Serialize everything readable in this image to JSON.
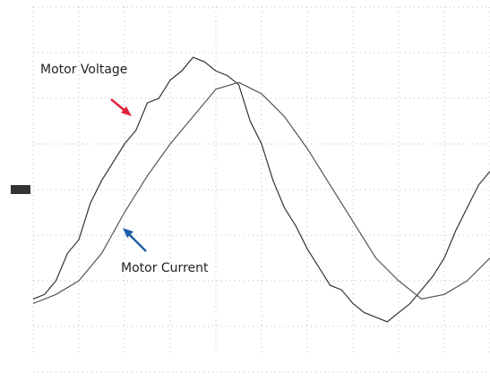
{
  "chart_data": {
    "type": "line",
    "xlim": [
      0,
      10
    ],
    "ylim": [
      -4,
      4
    ],
    "xticks": [
      0,
      1,
      2,
      3,
      4,
      5,
      6,
      7,
      8,
      9,
      10
    ],
    "yticks": [
      -4,
      -3,
      -2,
      -1,
      0,
      1,
      2,
      3,
      4
    ],
    "grid": true,
    "series": [
      {
        "name": "Motor Voltage",
        "color": "#333333",
        "x": [
          0,
          0.25,
          0.5,
          0.75,
          1,
          1.25,
          1.5,
          1.75,
          2,
          2.25,
          2.5,
          2.75,
          3,
          3.25,
          3.5,
          3.75,
          4,
          4.25,
          4.5,
          4.75,
          5,
          5.25,
          5.5,
          5.75,
          6,
          6.25,
          6.5,
          6.75,
          7,
          7.25,
          7.5,
          7.75,
          8,
          8.25,
          8.5,
          8.75,
          9,
          9.25,
          9.5,
          9.75,
          10
        ],
        "values": [
          -2.4,
          -2.3,
          -2.0,
          -1.4,
          -1.1,
          -0.3,
          0.2,
          0.6,
          1.0,
          1.3,
          1.9,
          2.0,
          2.4,
          2.6,
          2.9,
          2.8,
          2.6,
          2.5,
          2.3,
          1.5,
          1.0,
          0.2,
          -0.4,
          -0.8,
          -1.3,
          -1.7,
          -2.1,
          -2.2,
          -2.5,
          -2.7,
          -2.8,
          -2.9,
          -2.7,
          -2.5,
          -2.2,
          -1.9,
          -1.5,
          -0.9,
          -0.4,
          0.1,
          0.4
        ]
      },
      {
        "name": "Motor Current",
        "color": "#555555",
        "x": [
          0,
          0.5,
          1,
          1.5,
          2,
          2.5,
          3,
          3.5,
          4,
          4.5,
          5,
          5.5,
          6,
          6.5,
          7,
          7.5,
          8,
          8.5,
          9,
          9.5,
          10
        ],
        "values": [
          -2.5,
          -2.3,
          -2.0,
          -1.4,
          -0.5,
          0.3,
          1.0,
          1.6,
          2.2,
          2.35,
          2.1,
          1.6,
          0.9,
          0.1,
          -0.7,
          -1.5,
          -2.0,
          -2.4,
          -2.3,
          -2.0,
          -1.5
        ]
      }
    ]
  }
}
